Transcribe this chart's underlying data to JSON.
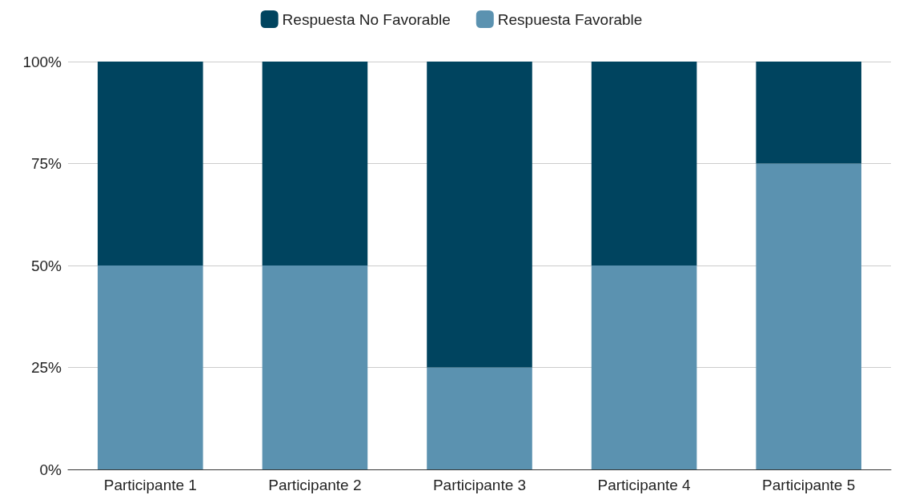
{
  "chart_data": {
    "type": "bar",
    "stacked": true,
    "categories": [
      "Participante 1",
      "Participante 2",
      "Participante 3",
      "Participante 4",
      "Participante 5"
    ],
    "series": [
      {
        "name": "Respuesta Favorable",
        "color": "#5b92b0",
        "values": [
          50,
          50,
          25,
          50,
          75
        ]
      },
      {
        "name": "Respuesta No Favorable",
        "color": "#00445f",
        "values": [
          50,
          50,
          75,
          50,
          25
        ]
      }
    ],
    "ylim": [
      0,
      100
    ],
    "yticks": [
      {
        "value": 0,
        "label": "0%"
      },
      {
        "value": 25,
        "label": "25%"
      },
      {
        "value": 50,
        "label": "50%"
      },
      {
        "value": 75,
        "label": "75%"
      },
      {
        "value": 100,
        "label": "100%"
      }
    ],
    "grid": "y",
    "legend": "top"
  }
}
